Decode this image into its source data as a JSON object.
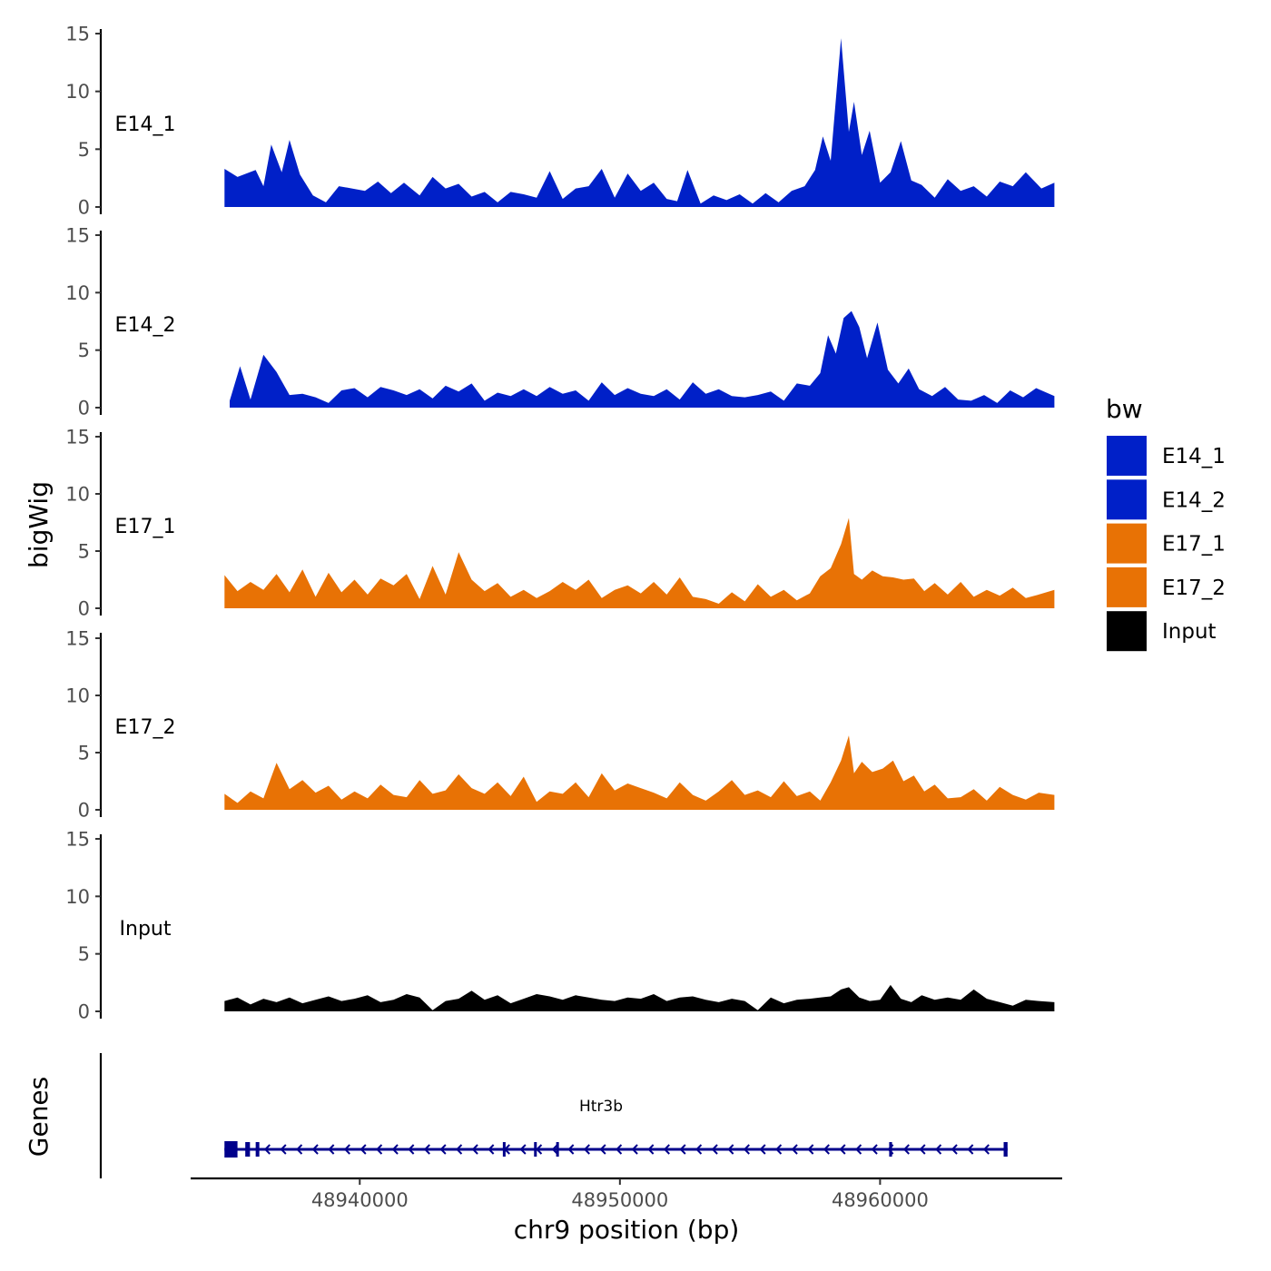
{
  "chart_data": {
    "type": "area",
    "chromosome": "chr9",
    "xlabel": "chr9 position (bp)",
    "ylabel": "bigWig",
    "genes_label": "Genes",
    "xlim": [
      48933500,
      48967000
    ],
    "x_ticks": [
      48940000,
      48950000,
      48960000
    ],
    "x_tick_labels": [
      "48940000",
      "48950000",
      "48960000"
    ],
    "ylim": [
      0,
      15
    ],
    "y_ticks": [
      0,
      5,
      10,
      15
    ],
    "y_tick_labels": [
      "0",
      "5",
      "10",
      "15"
    ],
    "legend": {
      "title": "bw",
      "entries": [
        {
          "name": "E14_1",
          "color": "#0020c8"
        },
        {
          "name": "E14_2",
          "color": "#0020c8"
        },
        {
          "name": "E17_1",
          "color": "#e87205"
        },
        {
          "name": "E17_2",
          "color": "#e87205"
        },
        {
          "name": "Input",
          "color": "#000000"
        }
      ]
    },
    "tracks": [
      {
        "name": "E14_1",
        "color": "#0020c8",
        "x_start": 48934800,
        "x_end": 48966700,
        "x": [
          48934800,
          48935300,
          48936000,
          48936300,
          48936600,
          48937000,
          48937300,
          48937700,
          48938200,
          48938700,
          48939200,
          48939700,
          48940200,
          48940700,
          48941200,
          48941700,
          48942300,
          48942800,
          48943300,
          48943800,
          48944300,
          48944800,
          48945300,
          48945800,
          48946300,
          48946800,
          48947300,
          48947800,
          48948300,
          48948800,
          48949300,
          48949800,
          48950300,
          48950800,
          48951300,
          48951800,
          48952200,
          48952600,
          48953100,
          48953600,
          48954100,
          48954600,
          48955100,
          48955600,
          48956100,
          48956600,
          48957100,
          48957500,
          48957800,
          48958100,
          48958500,
          48958800,
          48959000,
          48959300,
          48959600,
          48960000,
          48960400,
          48960800,
          48961200,
          48961600,
          48962100,
          48962600,
          48963100,
          48963600,
          48964100,
          48964600,
          48965100,
          48965600,
          48966200,
          48966700
        ],
        "y": [
          3.3,
          2.6,
          3.2,
          1.8,
          5.4,
          3.0,
          5.8,
          2.8,
          1.0,
          0.4,
          1.8,
          1.6,
          1.4,
          2.2,
          1.2,
          2.1,
          1.0,
          2.6,
          1.6,
          2.0,
          0.9,
          1.3,
          0.4,
          1.3,
          1.1,
          0.8,
          3.1,
          0.7,
          1.6,
          1.8,
          3.3,
          0.8,
          2.9,
          1.4,
          2.1,
          0.7,
          0.5,
          3.2,
          0.3,
          1.0,
          0.6,
          1.1,
          0.3,
          1.2,
          0.4,
          1.4,
          1.8,
          3.2,
          6.1,
          4.0,
          14.6,
          6.5,
          9.1,
          4.5,
          6.6,
          2.1,
          3.0,
          5.7,
          2.3,
          1.9,
          0.8,
          2.4,
          1.4,
          1.8,
          0.9,
          2.2,
          1.8,
          3.0,
          1.6,
          2.1
        ]
      },
      {
        "name": "E14_2",
        "color": "#0020c8",
        "x_start": 48935000,
        "x_end": 48966700,
        "x": [
          48935000,
          48935400,
          48935800,
          48936300,
          48936800,
          48937300,
          48937800,
          48938300,
          48938800,
          48939300,
          48939800,
          48940300,
          48940800,
          48941300,
          48941800,
          48942300,
          48942800,
          48943300,
          48943800,
          48944300,
          48944800,
          48945300,
          48945800,
          48946300,
          48946800,
          48947300,
          48947800,
          48948300,
          48948800,
          48949300,
          48949800,
          48950300,
          48950800,
          48951300,
          48951800,
          48952300,
          48952800,
          48953300,
          48953800,
          48954300,
          48954800,
          48955300,
          48955800,
          48956300,
          48956800,
          48957300,
          48957700,
          48958000,
          48958300,
          48958600,
          48958900,
          48959200,
          48959500,
          48959900,
          48960300,
          48960700,
          48961100,
          48961500,
          48962000,
          48962500,
          48963000,
          48963500,
          48964000,
          48964500,
          48965000,
          48965500,
          48966000,
          48966700
        ],
        "y": [
          0.6,
          3.6,
          0.7,
          4.6,
          3.1,
          1.1,
          1.2,
          0.9,
          0.4,
          1.5,
          1.7,
          0.9,
          1.8,
          1.5,
          1.1,
          1.6,
          0.8,
          1.9,
          1.4,
          2.1,
          0.6,
          1.3,
          1.0,
          1.6,
          1.0,
          1.8,
          1.2,
          1.5,
          0.6,
          2.2,
          1.1,
          1.7,
          1.2,
          1.0,
          1.6,
          0.7,
          2.2,
          1.2,
          1.6,
          1.0,
          0.9,
          1.1,
          1.4,
          0.6,
          2.1,
          1.9,
          3.0,
          6.3,
          4.7,
          7.8,
          8.4,
          7.0,
          4.3,
          7.4,
          3.3,
          2.1,
          3.4,
          1.6,
          1.0,
          1.8,
          0.7,
          0.6,
          1.1,
          0.4,
          1.5,
          0.9,
          1.7,
          1.0
        ]
      },
      {
        "name": "E17_1",
        "color": "#e87205",
        "x_start": 48934800,
        "x_end": 48966700,
        "x": [
          48934800,
          48935300,
          48935800,
          48936300,
          48936800,
          48937300,
          48937800,
          48938300,
          48938800,
          48939300,
          48939800,
          48940300,
          48940800,
          48941300,
          48941800,
          48942300,
          48942800,
          48943300,
          48943800,
          48944300,
          48944800,
          48945300,
          48945800,
          48946300,
          48946800,
          48947300,
          48947800,
          48948300,
          48948800,
          48949300,
          48949800,
          48950300,
          48950800,
          48951300,
          48951800,
          48952300,
          48952800,
          48953300,
          48953800,
          48954300,
          48954800,
          48955300,
          48955800,
          48956300,
          48956800,
          48957300,
          48957700,
          48958100,
          48958500,
          48958800,
          48959000,
          48959300,
          48959700,
          48960100,
          48960500,
          48960900,
          48961300,
          48961700,
          48962100,
          48962600,
          48963100,
          48963600,
          48964100,
          48964600,
          48965100,
          48965600,
          48966100,
          48966700
        ],
        "y": [
          2.9,
          1.5,
          2.3,
          1.6,
          3.0,
          1.4,
          3.4,
          1.0,
          3.1,
          1.4,
          2.5,
          1.2,
          2.6,
          2.0,
          3.0,
          0.8,
          3.7,
          1.2,
          4.9,
          2.5,
          1.5,
          2.2,
          1.0,
          1.6,
          0.9,
          1.5,
          2.3,
          1.6,
          2.5,
          0.9,
          1.6,
          2.0,
          1.3,
          2.3,
          1.2,
          2.7,
          1.0,
          0.8,
          0.4,
          1.4,
          0.6,
          2.1,
          1.0,
          1.6,
          0.7,
          1.3,
          2.8,
          3.5,
          5.6,
          7.9,
          3.0,
          2.5,
          3.3,
          2.8,
          2.7,
          2.5,
          2.6,
          1.5,
          2.2,
          1.2,
          2.3,
          1.0,
          1.6,
          1.1,
          1.8,
          0.9,
          1.2,
          1.6
        ]
      },
      {
        "name": "E17_2",
        "color": "#e87205",
        "x_start": 48934800,
        "x_end": 48966700,
        "x": [
          48934800,
          48935300,
          48935800,
          48936300,
          48936800,
          48937300,
          48937800,
          48938300,
          48938800,
          48939300,
          48939800,
          48940300,
          48940800,
          48941300,
          48941800,
          48942300,
          48942800,
          48943300,
          48943800,
          48944300,
          48944800,
          48945300,
          48945800,
          48946300,
          48946800,
          48947300,
          48947800,
          48948300,
          48948800,
          48949300,
          48949800,
          48950300,
          48950800,
          48951300,
          48951800,
          48952300,
          48952800,
          48953300,
          48953800,
          48954300,
          48954800,
          48955300,
          48955800,
          48956300,
          48956800,
          48957300,
          48957700,
          48958100,
          48958500,
          48958800,
          48959000,
          48959300,
          48959700,
          48960100,
          48960500,
          48960900,
          48961300,
          48961700,
          48962100,
          48962600,
          48963100,
          48963600,
          48964100,
          48964600,
          48965100,
          48965600,
          48966100,
          48966700
        ],
        "y": [
          1.4,
          0.6,
          1.6,
          1.0,
          4.1,
          1.8,
          2.6,
          1.5,
          2.1,
          0.9,
          1.6,
          1.0,
          2.2,
          1.3,
          1.1,
          2.6,
          1.4,
          1.7,
          3.1,
          1.9,
          1.4,
          2.4,
          1.2,
          2.9,
          0.7,
          1.6,
          1.4,
          2.4,
          1.1,
          3.2,
          1.7,
          2.3,
          1.9,
          1.5,
          1.0,
          2.4,
          1.3,
          0.8,
          1.6,
          2.6,
          1.3,
          1.7,
          1.1,
          2.5,
          1.2,
          1.6,
          0.8,
          2.4,
          4.3,
          6.5,
          3.2,
          4.2,
          3.3,
          3.6,
          4.3,
          2.5,
          3.0,
          1.6,
          2.2,
          1.0,
          1.1,
          1.8,
          0.8,
          2.0,
          1.3,
          0.9,
          1.5,
          1.3
        ]
      },
      {
        "name": "Input",
        "color": "#000000",
        "x_start": 48934800,
        "x_end": 48966700,
        "x": [
          48934800,
          48935300,
          48935800,
          48936300,
          48936800,
          48937300,
          48937800,
          48938300,
          48938800,
          48939300,
          48939800,
          48940300,
          48940800,
          48941300,
          48941800,
          48942300,
          48942800,
          48943300,
          48943800,
          48944300,
          48944800,
          48945300,
          48945800,
          48946300,
          48946800,
          48947300,
          48947800,
          48948300,
          48948800,
          48949300,
          48949800,
          48950300,
          48950800,
          48951300,
          48951800,
          48952300,
          48952800,
          48953300,
          48953800,
          48954300,
          48954800,
          48955300,
          48955800,
          48956300,
          48956800,
          48957300,
          48957700,
          48958100,
          48958500,
          48958800,
          48959200,
          48959600,
          48960000,
          48960400,
          48960800,
          48961200,
          48961600,
          48962100,
          48962600,
          48963100,
          48963600,
          48964100,
          48964600,
          48965100,
          48965600,
          48966100,
          48966700
        ],
        "y": [
          0.9,
          1.2,
          0.6,
          1.1,
          0.8,
          1.2,
          0.7,
          1.0,
          1.3,
          0.9,
          1.1,
          1.4,
          0.8,
          1.0,
          1.5,
          1.2,
          0.1,
          0.9,
          1.1,
          1.8,
          1.0,
          1.4,
          0.7,
          1.1,
          1.5,
          1.3,
          1.0,
          1.4,
          1.2,
          1.0,
          0.9,
          1.2,
          1.1,
          1.5,
          0.9,
          1.2,
          1.3,
          1.0,
          0.8,
          1.1,
          0.9,
          0.1,
          1.2,
          0.7,
          1.0,
          1.1,
          1.2,
          1.3,
          1.9,
          2.1,
          1.2,
          0.9,
          1.0,
          2.3,
          1.1,
          0.8,
          1.4,
          1.0,
          1.2,
          1.0,
          1.9,
          1.1,
          0.8,
          0.5,
          1.0,
          0.9,
          0.8
        ]
      }
    ],
    "gene": {
      "name": "Htr3b",
      "strand": "-",
      "start": 48934800,
      "end": 48964900,
      "exons": [
        [
          48934800,
          48935300
        ],
        [
          48935600,
          48935780
        ],
        [
          48936000,
          48936140
        ],
        [
          48945500,
          48945580
        ],
        [
          48946700,
          48946800
        ],
        [
          48947550,
          48947600
        ],
        [
          48960350,
          48960460
        ],
        [
          48964750,
          48964900
        ]
      ]
    }
  }
}
